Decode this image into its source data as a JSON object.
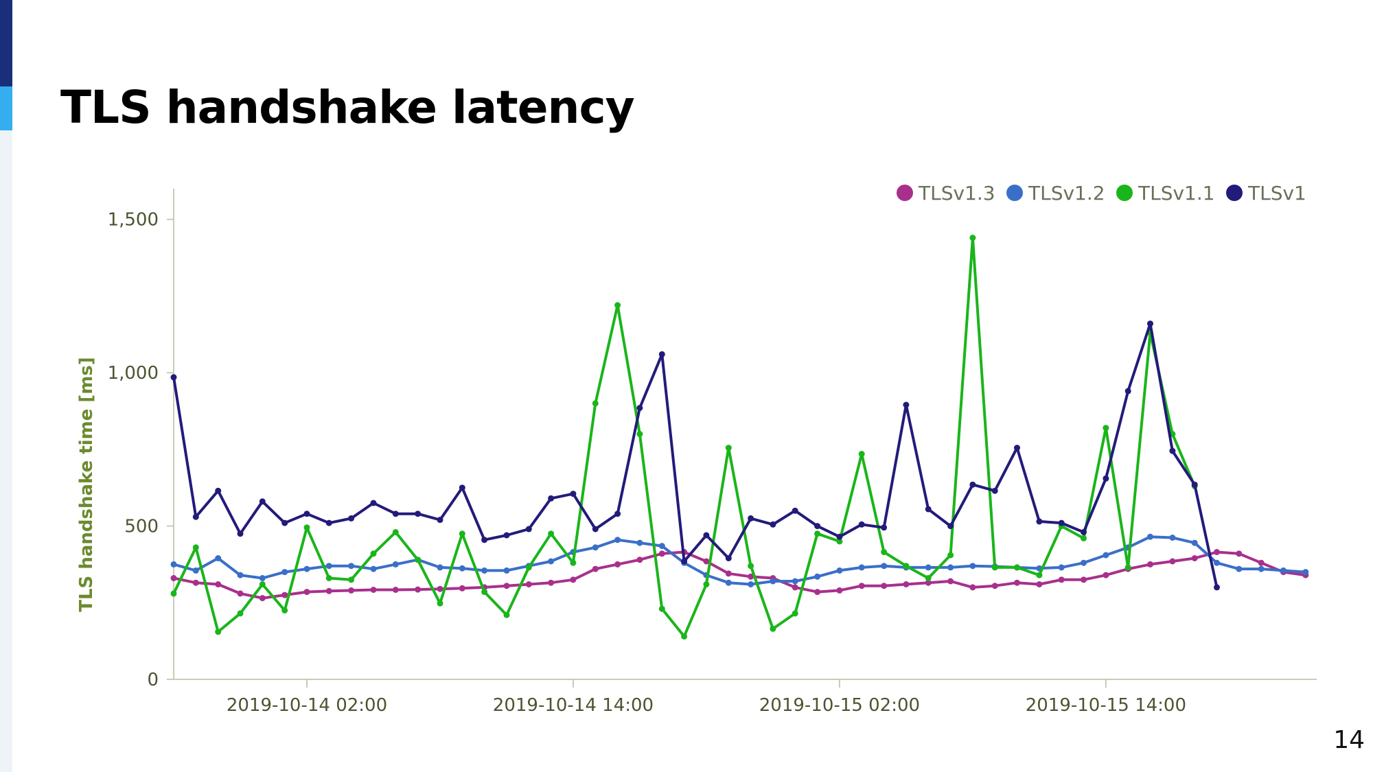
{
  "slide": {
    "title": "TLS handshake latency",
    "page_number": "14"
  },
  "colors": {
    "accent_dark": "#1a2f7a",
    "accent_light": "#35aef0",
    "axis": "#c8ccb4",
    "label_text": "#4a5530",
    "ylabel_text": "#6c8a30"
  },
  "chart_data": {
    "type": "line",
    "title": "",
    "xlabel": "",
    "ylabel": "TLS handshake time [ms]",
    "ylim": [
      0,
      1600
    ],
    "xlim": [
      "2019-10-13 20:00",
      "2019-10-15 23:30"
    ],
    "y_ticks": [
      0,
      500,
      1000,
      1500
    ],
    "y_tick_labels": [
      "0",
      "500",
      "1,000",
      "1,500"
    ],
    "x_ticks": [
      "2019-10-14 02:00",
      "2019-10-14 14:00",
      "2019-10-15 02:00",
      "2019-10-15 14:00"
    ],
    "legend_position": "top-right",
    "grid": false,
    "x": [
      "2019-10-13 20:00",
      "2019-10-13 21:00",
      "2019-10-13 22:00",
      "2019-10-13 23:00",
      "2019-10-14 00:00",
      "2019-10-14 01:00",
      "2019-10-14 02:00",
      "2019-10-14 03:00",
      "2019-10-14 04:00",
      "2019-10-14 05:00",
      "2019-10-14 06:00",
      "2019-10-14 07:00",
      "2019-10-14 08:00",
      "2019-10-14 09:00",
      "2019-10-14 10:00",
      "2019-10-14 11:00",
      "2019-10-14 12:00",
      "2019-10-14 13:00",
      "2019-10-14 14:00",
      "2019-10-14 15:00",
      "2019-10-14 16:00",
      "2019-10-14 17:00",
      "2019-10-14 18:00",
      "2019-10-14 19:00",
      "2019-10-14 20:00",
      "2019-10-14 21:00",
      "2019-10-14 22:00",
      "2019-10-14 23:00",
      "2019-10-15 00:00",
      "2019-10-15 01:00",
      "2019-10-15 02:00",
      "2019-10-15 03:00",
      "2019-10-15 04:00",
      "2019-10-15 05:00",
      "2019-10-15 06:00",
      "2019-10-15 07:00",
      "2019-10-15 08:00",
      "2019-10-15 09:00",
      "2019-10-15 10:00",
      "2019-10-15 11:00",
      "2019-10-15 12:00",
      "2019-10-15 13:00",
      "2019-10-15 14:00",
      "2019-10-15 15:00",
      "2019-10-15 16:00",
      "2019-10-15 17:00",
      "2019-10-15 18:00",
      "2019-10-15 19:00",
      "2019-10-15 20:00",
      "2019-10-15 21:00",
      "2019-10-15 22:00",
      "2019-10-15 23:00"
    ],
    "series": [
      {
        "name": "TLSv1.3",
        "color": "#a8308c",
        "values": [
          330,
          315,
          310,
          280,
          265,
          275,
          285,
          288,
          290,
          292,
          292,
          293,
          295,
          297,
          300,
          305,
          310,
          315,
          325,
          360,
          375,
          390,
          410,
          415,
          385,
          345,
          335,
          330,
          300,
          285,
          290,
          305,
          305,
          310,
          315,
          320,
          300,
          305,
          315,
          310,
          325,
          325,
          340,
          360,
          375,
          385,
          395,
          415,
          410,
          380,
          350,
          340
        ]
      },
      {
        "name": "TLSv1.2",
        "color": "#3a6fc8",
        "values": [
          375,
          355,
          395,
          340,
          330,
          350,
          360,
          370,
          370,
          360,
          375,
          390,
          365,
          362,
          355,
          355,
          370,
          385,
          415,
          430,
          455,
          445,
          435,
          380,
          340,
          315,
          310,
          320,
          320,
          335,
          355,
          365,
          370,
          365,
          365,
          365,
          370,
          368,
          365,
          362,
          365,
          380,
          405,
          430,
          465,
          462,
          445,
          380,
          360,
          360,
          355,
          350
        ]
      },
      {
        "name": "TLSv1.1",
        "color": "#1ab51a",
        "values": [
          280,
          430,
          155,
          215,
          310,
          225,
          495,
          330,
          325,
          410,
          480,
          390,
          248,
          475,
          285,
          210,
          365,
          475,
          380,
          900,
          1220,
          800,
          230,
          140,
          310,
          755,
          370,
          165,
          215,
          475,
          450,
          735,
          415,
          370,
          330,
          405,
          1440,
          365,
          365,
          340,
          500,
          460,
          820,
          365,
          1130,
          800,
          630,
          null,
          null,
          null,
          null,
          null
        ]
      },
      {
        "name": "TLSv1",
        "color": "#231b7a",
        "values": [
          985,
          530,
          615,
          475,
          580,
          510,
          540,
          510,
          525,
          575,
          540,
          540,
          520,
          625,
          455,
          470,
          490,
          590,
          605,
          490,
          540,
          885,
          1060,
          385,
          470,
          395,
          525,
          505,
          550,
          500,
          465,
          505,
          495,
          895,
          555,
          500,
          635,
          615,
          755,
          515,
          510,
          480,
          655,
          940,
          1160,
          745,
          635,
          300,
          null,
          null,
          null,
          null
        ]
      }
    ]
  }
}
